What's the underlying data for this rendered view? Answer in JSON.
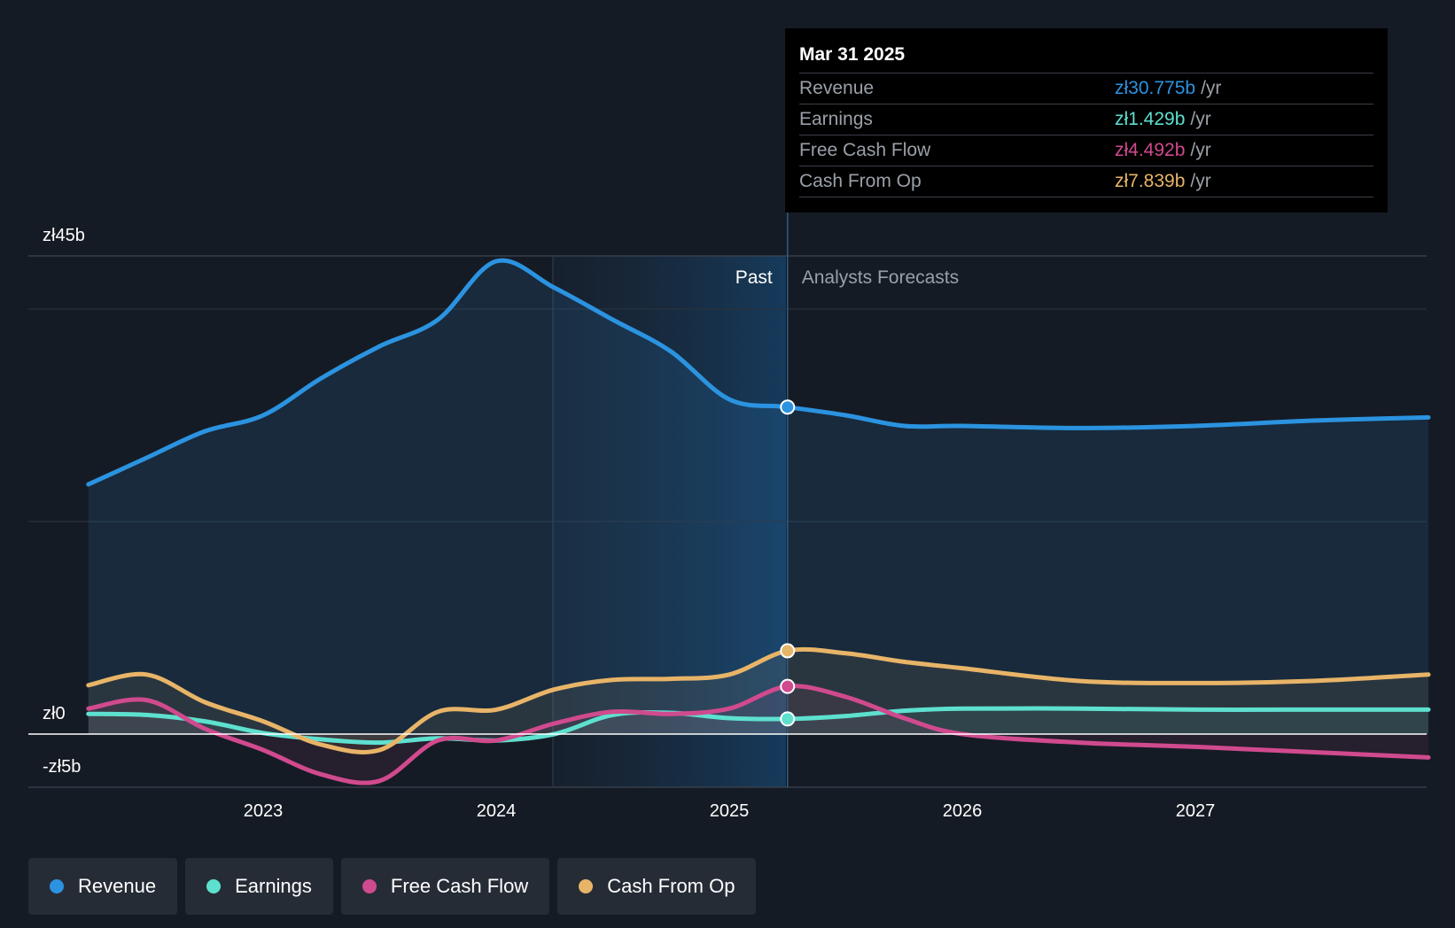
{
  "chart_data": {
    "type": "area",
    "y_axis": {
      "min": -5,
      "max": 45,
      "unit": "b",
      "tick_labels": [
        "zł45b",
        "zł0",
        "-zł5b"
      ]
    },
    "x_axis": {
      "tick_labels": [
        "2023",
        "2024",
        "2025",
        "2026",
        "2027"
      ]
    },
    "divider": {
      "x": 2025.25,
      "past_label": "Past",
      "forecast_label": "Analysts Forecasts"
    },
    "series": [
      {
        "name": "Revenue",
        "color": "#2b93e0",
        "x": [
          2022.25,
          2022.5,
          2022.75,
          2023.0,
          2023.25,
          2023.5,
          2023.75,
          2024.0,
          2024.25,
          2024.5,
          2024.75,
          2025.0,
          2025.25,
          2025.5,
          2025.75,
          2026.0,
          2026.5,
          2027.0,
          2027.5,
          2028.0
        ],
        "y": [
          23.5,
          26.0,
          28.5,
          30.0,
          33.5,
          36.5,
          39.0,
          44.5,
          42.0,
          39.0,
          36.0,
          31.5,
          30.775,
          30.0,
          29.0,
          29.0,
          28.8,
          29.0,
          29.5,
          29.8
        ]
      },
      {
        "name": "Earnings",
        "color": "#5ee0cf",
        "x": [
          2022.25,
          2022.5,
          2022.75,
          2023.0,
          2023.25,
          2023.5,
          2023.75,
          2024.0,
          2024.25,
          2024.5,
          2024.75,
          2025.0,
          2025.25,
          2025.5,
          2025.75,
          2026.0,
          2026.5,
          2027.0,
          2027.5,
          2028.0
        ],
        "y": [
          1.9,
          1.8,
          1.2,
          0.1,
          -0.5,
          -0.8,
          -0.4,
          -0.6,
          0.0,
          1.8,
          2.0,
          1.5,
          1.429,
          1.7,
          2.2,
          2.4,
          2.4,
          2.3,
          2.3,
          2.3
        ]
      },
      {
        "name": "Free Cash Flow",
        "color": "#d04a8e",
        "x": [
          2022.25,
          2022.5,
          2022.75,
          2023.0,
          2023.25,
          2023.5,
          2023.75,
          2024.0,
          2024.25,
          2024.5,
          2024.75,
          2025.0,
          2025.25,
          2025.5,
          2025.75,
          2026.0,
          2026.5,
          2027.0,
          2027.5,
          2028.0
        ],
        "y": [
          2.4,
          3.2,
          0.5,
          -1.5,
          -3.8,
          -4.4,
          -0.6,
          -0.6,
          1.0,
          2.1,
          1.9,
          2.4,
          4.492,
          3.5,
          1.5,
          0.0,
          -0.8,
          -1.2,
          -1.7,
          -2.2
        ]
      },
      {
        "name": "Cash From Op",
        "color": "#e8b468",
        "x": [
          2022.25,
          2022.5,
          2022.75,
          2023.0,
          2023.25,
          2023.5,
          2023.75,
          2024.0,
          2024.25,
          2024.5,
          2024.75,
          2025.0,
          2025.25,
          2025.5,
          2025.75,
          2026.0,
          2026.5,
          2027.0,
          2027.5,
          2028.0
        ],
        "y": [
          4.6,
          5.6,
          3.0,
          1.2,
          -1.0,
          -1.5,
          2.1,
          2.3,
          4.2,
          5.1,
          5.2,
          5.6,
          7.839,
          7.6,
          6.8,
          6.2,
          5.0,
          4.8,
          5.0,
          5.6
        ]
      }
    ]
  },
  "tooltip": {
    "date": "Mar 31 2025",
    "rows": [
      {
        "label": "Revenue",
        "value": "zł30.775b",
        "unit": "/yr",
        "color": "#2b93e0"
      },
      {
        "label": "Earnings",
        "value": "zł1.429b",
        "unit": "/yr",
        "color": "#5ee0cf"
      },
      {
        "label": "Free Cash Flow",
        "value": "zł4.492b",
        "unit": "/yr",
        "color": "#d04a8e"
      },
      {
        "label": "Cash From Op",
        "value": "zł7.839b",
        "unit": "/yr",
        "color": "#e8b468"
      }
    ]
  },
  "legend": [
    {
      "label": "Revenue",
      "color": "#2b93e0"
    },
    {
      "label": "Earnings",
      "color": "#5ee0cf"
    },
    {
      "label": "Free Cash Flow",
      "color": "#d04a8e"
    },
    {
      "label": "Cash From Op",
      "color": "#e8b468"
    }
  ]
}
